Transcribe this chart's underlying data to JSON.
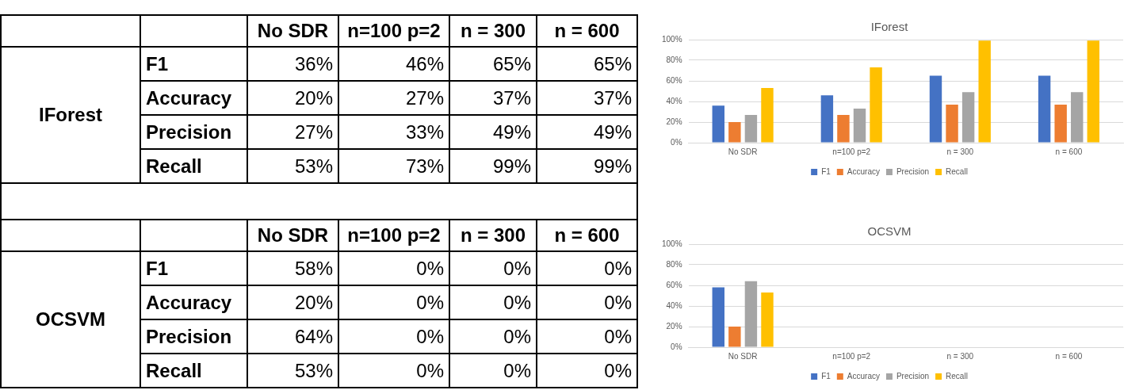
{
  "chart_data": [
    {
      "type": "heatmap",
      "title": "IForest",
      "categories": [
        "No SDR",
        "n=100 p=2",
        "n = 300",
        "n = 600"
      ],
      "y_categories": [
        "F1",
        "Accuracy",
        "Precision",
        "Recall"
      ],
      "cells": [
        [
          36,
          46,
          65,
          65
        ],
        [
          20,
          27,
          37,
          37
        ],
        [
          27,
          33,
          49,
          49
        ],
        [
          53,
          73,
          99,
          99
        ]
      ],
      "cell_labels": [
        [
          "36%",
          "46%",
          "65%",
          "65%"
        ],
        [
          "20%",
          "27%",
          "37%",
          "37%"
        ],
        [
          "27%",
          "33%",
          "49%",
          "49%"
        ],
        [
          "53%",
          "73%",
          "99%",
          "99%"
        ]
      ]
    },
    {
      "type": "bar",
      "title": "IForest",
      "categories": [
        "No SDR",
        "n=100 p=2",
        "n = 300",
        "n = 600"
      ],
      "series": [
        {
          "name": "F1",
          "color": "#4472c4",
          "values": [
            36,
            46,
            65,
            65
          ]
        },
        {
          "name": "Accuracy",
          "color": "#ed7d31",
          "values": [
            20,
            27,
            37,
            37
          ]
        },
        {
          "name": "Precision",
          "color": "#a5a5a5",
          "values": [
            27,
            33,
            49,
            49
          ]
        },
        {
          "name": "Recall",
          "color": "#ffc000",
          "values": [
            53,
            73,
            99,
            99
          ]
        }
      ],
      "ylim": [
        0,
        100
      ],
      "yticks": [
        {
          "value": 0,
          "label": "0%"
        },
        {
          "value": 20,
          "label": "20%"
        },
        {
          "value": 40,
          "label": "40%"
        },
        {
          "value": 60,
          "label": "60%"
        },
        {
          "value": 80,
          "label": "80%"
        },
        {
          "value": 100,
          "label": "100%"
        }
      ],
      "grid": "y",
      "legend": "bottom"
    },
    {
      "type": "heatmap",
      "title": "OCSVM",
      "categories": [
        "No SDR",
        "n=100 p=2",
        "n = 300",
        "n = 600"
      ],
      "y_categories": [
        "F1",
        "Accuracy",
        "Precision",
        "Recall"
      ],
      "cells": [
        [
          58,
          0,
          0,
          0
        ],
        [
          20,
          0,
          0,
          0
        ],
        [
          64,
          0,
          0,
          0
        ],
        [
          53,
          0,
          0,
          0
        ]
      ],
      "cell_labels": [
        [
          "58%",
          "0%",
          "0%",
          "0%"
        ],
        [
          "20%",
          "0%",
          "0%",
          "0%"
        ],
        [
          "64%",
          "0%",
          "0%",
          "0%"
        ],
        [
          "53%",
          "0%",
          "0%",
          "0%"
        ]
      ]
    },
    {
      "type": "bar",
      "title": "OCSVM",
      "categories": [
        "No SDR",
        "n=100 p=2",
        "n = 300",
        "n = 600"
      ],
      "series": [
        {
          "name": "F1",
          "color": "#4472c4",
          "values": [
            58,
            0,
            0,
            0
          ]
        },
        {
          "name": "Accuracy",
          "color": "#ed7d31",
          "values": [
            20,
            0,
            0,
            0
          ]
        },
        {
          "name": "Precision",
          "color": "#a5a5a5",
          "values": [
            64,
            0,
            0,
            0
          ]
        },
        {
          "name": "Recall",
          "color": "#ffc000",
          "values": [
            53,
            0,
            0,
            0
          ]
        }
      ],
      "ylim": [
        0,
        100
      ],
      "yticks": [
        {
          "value": 0,
          "label": "0%"
        },
        {
          "value": 20,
          "label": "20%"
        },
        {
          "value": 40,
          "label": "40%"
        },
        {
          "value": 60,
          "label": "60%"
        },
        {
          "value": 80,
          "label": "80%"
        },
        {
          "value": 100,
          "label": "100%"
        }
      ],
      "grid": "y",
      "legend": "bottom"
    }
  ]
}
